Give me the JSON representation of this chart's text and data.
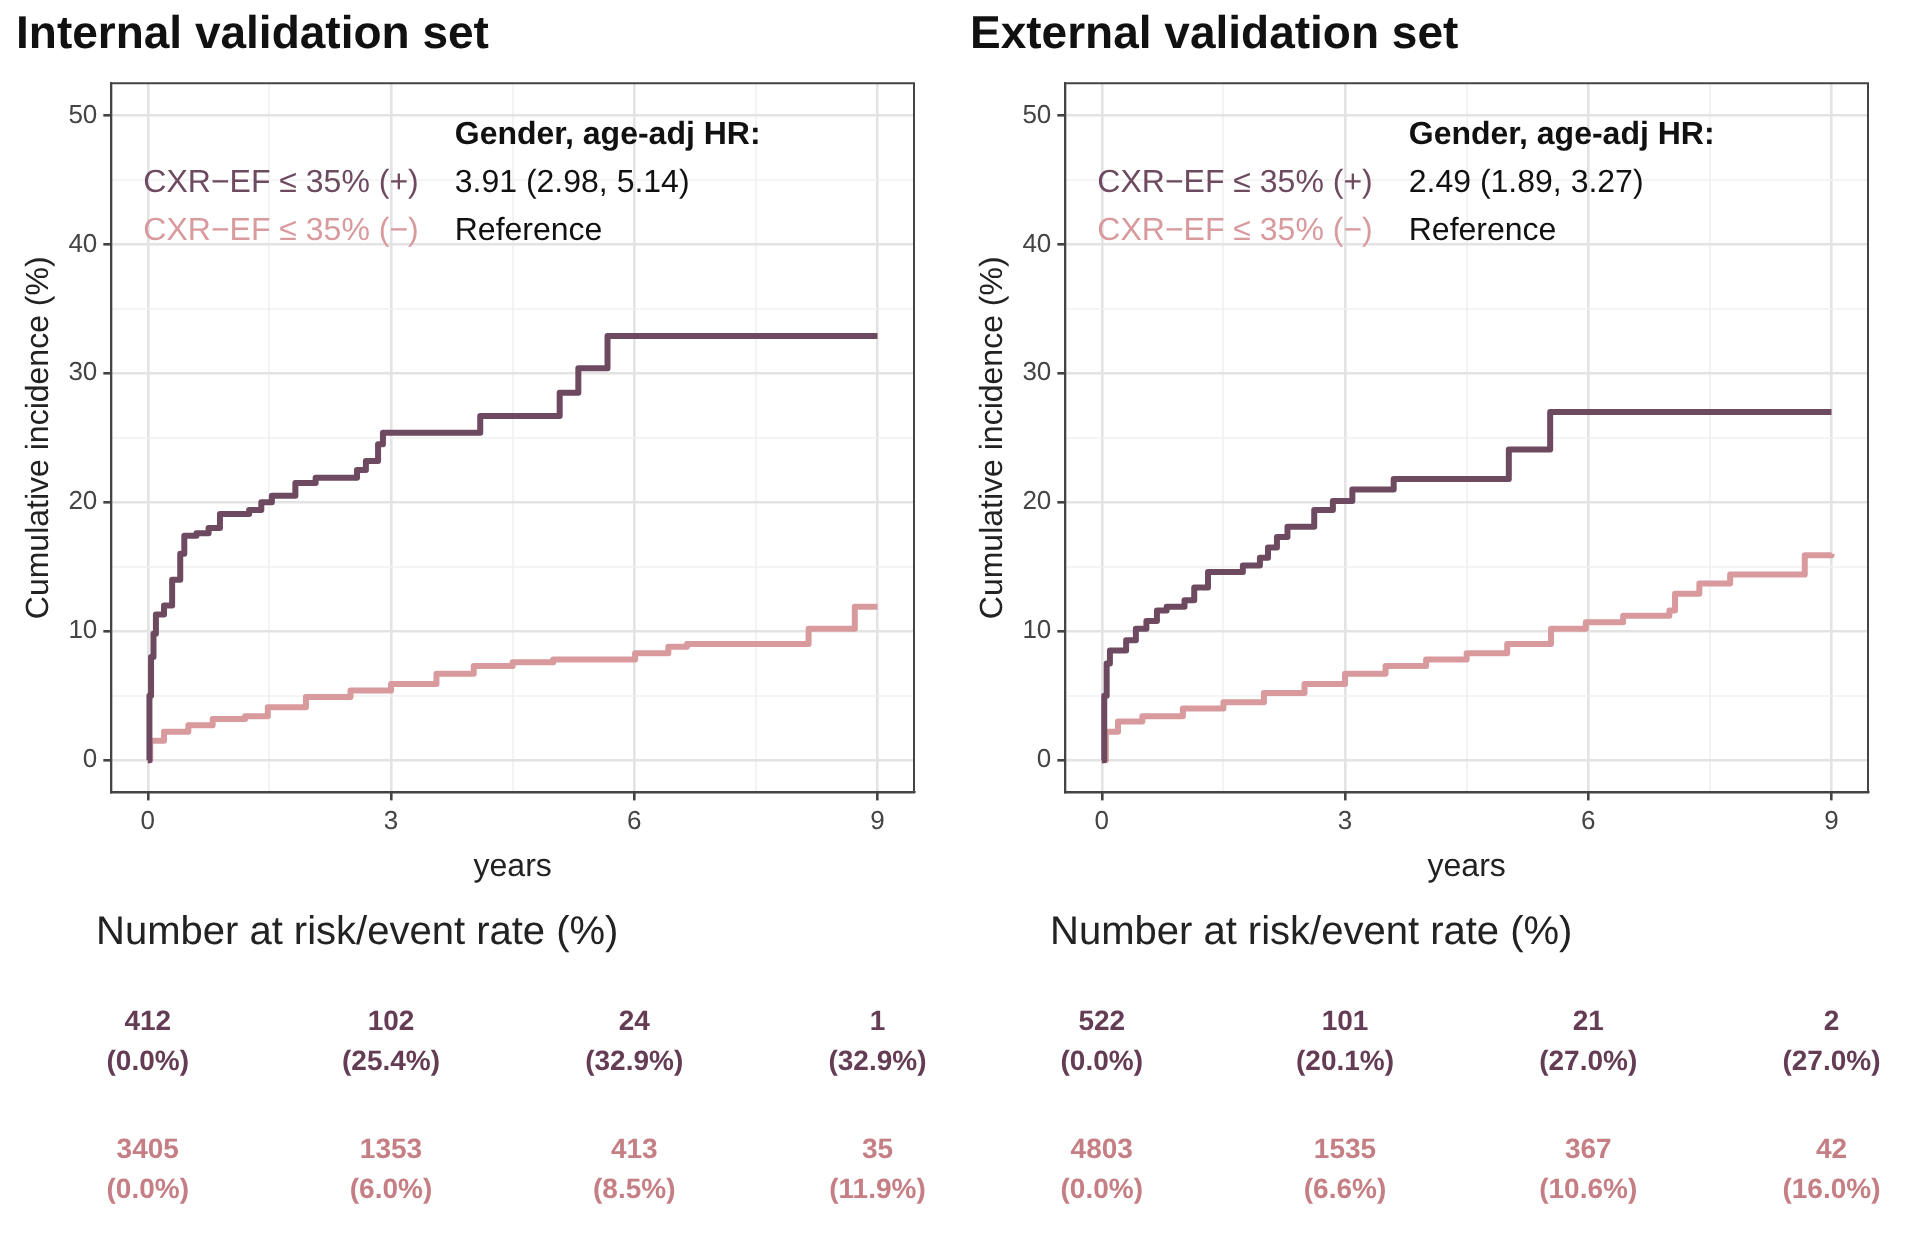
{
  "chart_data": [
    {
      "type": "step",
      "title": "Internal validation set",
      "xlabel": "years",
      "ylabel": "Cumulative incidence (%)",
      "xlim": [
        -0.45,
        9.45
      ],
      "ylim": [
        -2.5,
        52.5
      ],
      "xticks": [
        0,
        3,
        6,
        9,
        {
          "value": 1.5,
          "label": null
        },
        {
          "value": 4.5,
          "label": null
        },
        {
          "value": 7.5,
          "label": null
        }
      ],
      "yticks": [
        0,
        10,
        20,
        30,
        40,
        50,
        {
          "value": 5,
          "label": null
        },
        {
          "value": 15,
          "label": null
        },
        {
          "value": 25,
          "label": null
        },
        {
          "value": 35,
          "label": null
        },
        {
          "value": 45,
          "label": null
        }
      ],
      "grid": true,
      "legend": "top left",
      "series": [
        {
          "name": "CXR−EF ≤ 35% (+)",
          "color": "#6e4a60",
          "x": [
            0,
            0.02,
            0.04,
            0.07,
            0.1,
            0.2,
            0.3,
            0.4,
            0.45,
            0.6,
            0.75,
            0.89,
            1.25,
            1.4,
            1.53,
            1.82,
            2.07,
            2.58,
            2.69,
            2.84,
            2.9,
            4.1,
            5.08,
            5.31,
            5.67,
            9
          ],
          "values": [
            0,
            5,
            8,
            9.8,
            11.3,
            12,
            14,
            16,
            17.4,
            17.6,
            18,
            19.1,
            19.4,
            20,
            20.5,
            21.5,
            21.9,
            22.5,
            23.2,
            24.5,
            25.4,
            26.7,
            28.5,
            30.4,
            32.9,
            32.9
          ]
        },
        {
          "name": "CXR−EF ≤ 35% (−)",
          "color": "#d99a9e",
          "x": [
            0,
            0.03,
            0.2,
            0.5,
            0.8,
            1.2,
            1.48,
            1.95,
            2.5,
            3.0,
            3.56,
            4.02,
            4.5,
            5.0,
            6.01,
            6.42,
            6.65,
            8.15,
            8.72,
            9
          ],
          "values": [
            0,
            1.5,
            2.2,
            2.7,
            3.2,
            3.4,
            4.1,
            4.9,
            5.4,
            5.9,
            6.7,
            7.3,
            7.6,
            7.8,
            8.3,
            8.8,
            9.0,
            10.2,
            11.9,
            11.9
          ]
        }
      ],
      "annotations": [
        "Gender, age-adj HR:",
        "3.91 (2.98, 5.14)",
        "Reference",
        "Number at risk/event rate (%)",
        "412\n(0.0%)",
        "102\n(25.4%)",
        "24\n(32.9%)",
        "1\n(32.9%)",
        "3405\n(0.0%)",
        "1353\n(6.0%)",
        "413\n(8.5%)",
        "35\n(11.9%)"
      ]
    },
    {
      "type": "step",
      "title": "External validation set",
      "xlabel": "years",
      "ylabel": "Cumulative incidence (%)",
      "xlim": [
        -0.45,
        9.45
      ],
      "ylim": [
        -2.5,
        52.5
      ],
      "xticks": [
        0,
        3,
        6,
        9,
        {
          "value": 1.5,
          "label": null
        },
        {
          "value": 4.5,
          "label": null
        },
        {
          "value": 7.5,
          "label": null
        }
      ],
      "yticks": [
        0,
        10,
        20,
        30,
        40,
        50,
        {
          "value": 5,
          "label": null
        },
        {
          "value": 15,
          "label": null
        },
        {
          "value": 25,
          "label": null
        },
        {
          "value": 35,
          "label": null
        },
        {
          "value": 45,
          "label": null
        }
      ],
      "grid": true,
      "legend": "top left",
      "series": [
        {
          "name": "CXR−EF ≤ 35% (+)",
          "color": "#6e4a60",
          "x": [
            0,
            0.03,
            0.06,
            0.1,
            0.3,
            0.42,
            0.55,
            0.68,
            0.8,
            1.02,
            1.14,
            1.31,
            1.74,
            1.95,
            2.05,
            2.16,
            2.29,
            2.62,
            2.85,
            3.09,
            3.6,
            5.02,
            5.53,
            9
          ],
          "values": [
            0,
            5,
            7.5,
            8.5,
            9.3,
            10.2,
            10.8,
            11.6,
            11.9,
            12.4,
            13.4,
            14.6,
            15.1,
            15.7,
            16.5,
            17.3,
            18.1,
            19.4,
            20.1,
            21.0,
            21.8,
            24.1,
            27.0,
            27.0
          ]
        },
        {
          "name": "CXR−EF ≤ 35% (−)",
          "color": "#d99a9e",
          "x": [
            0,
            0.05,
            0.2,
            0.5,
            1,
            1.5,
            2,
            2.5,
            3.0,
            3.5,
            4,
            4.5,
            5.0,
            5.54,
            5.97,
            6.43,
            7.0,
            7.07,
            7.37,
            7.75,
            8.67,
            9
          ],
          "values": [
            0,
            2.2,
            3.0,
            3.4,
            4.0,
            4.5,
            5.2,
            5.9,
            6.7,
            7.3,
            7.8,
            8.3,
            9.0,
            10.2,
            10.7,
            11.2,
            11.6,
            12.9,
            13.7,
            14.4,
            15.9,
            16.0
          ]
        }
      ],
      "annotations": [
        "Gender, age-adj HR:",
        "2.49 (1.89, 3.27)",
        "Reference",
        "Number at risk/event rate (%)",
        "522\n(0.0%)",
        "101\n(20.1%)",
        "21\n(27.0%)",
        "2\n(27.0%)",
        "4803\n(0.0%)",
        "1535\n(6.6%)",
        "367\n(10.6%)",
        "42\n(16.0%)"
      ]
    }
  ]
}
